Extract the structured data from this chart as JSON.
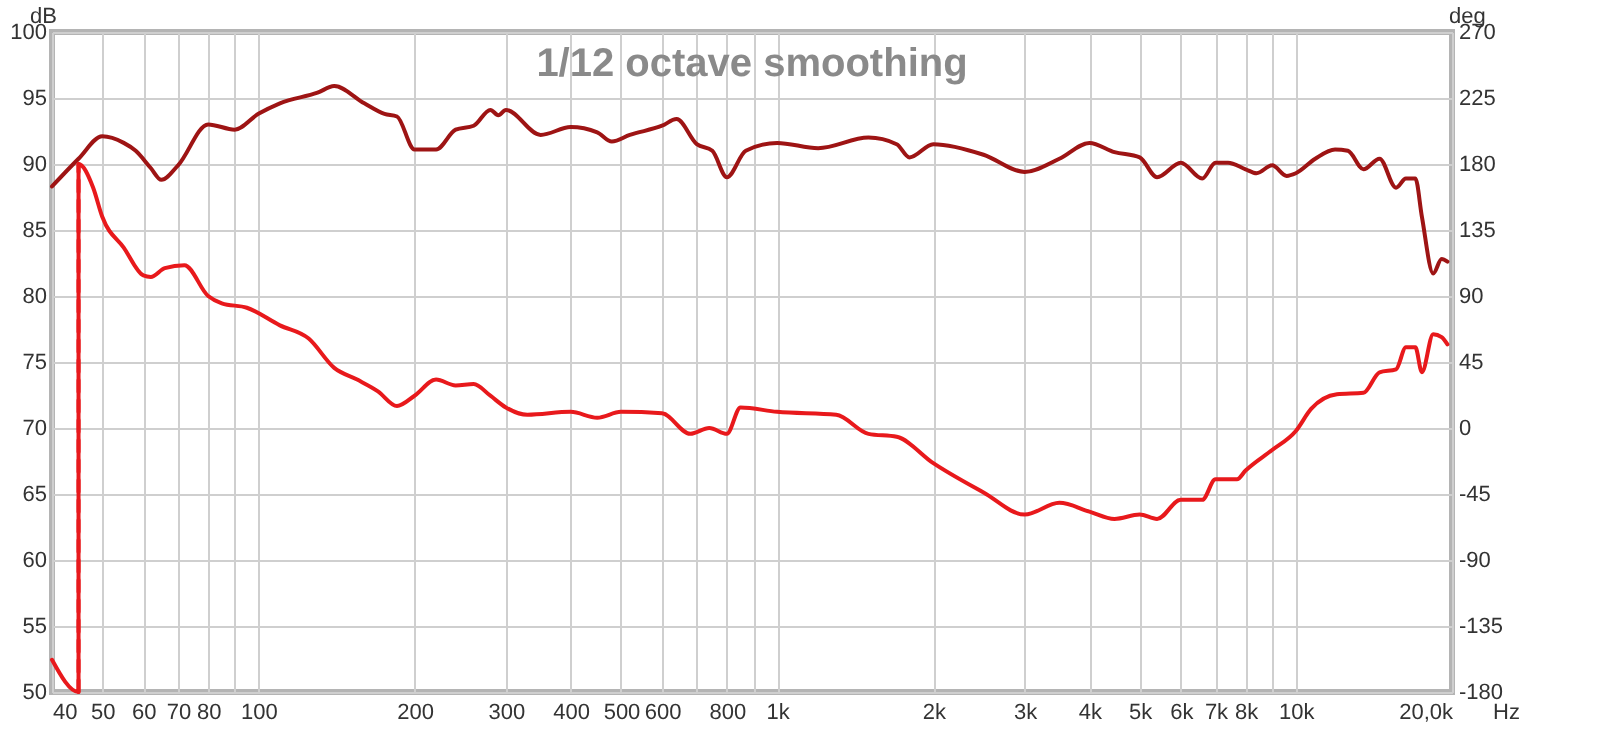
{
  "chart_data": {
    "type": "line",
    "title": "1/12 octave smoothing",
    "xlabel": "Hz",
    "ylabel": "dB",
    "y2label": "deg",
    "log": "x",
    "grid": true,
    "marker": "none",
    "xlim": [
      40,
      20000
    ],
    "xticks": [
      40,
      50,
      60,
      70,
      80,
      {
        "value": 90,
        "label": null
      },
      100,
      200,
      300,
      400,
      500,
      600,
      {
        "value": 700,
        "label": null
      },
      800,
      {
        "value": 900,
        "label": null
      },
      {
        "value": 1000,
        "label": "1k"
      },
      {
        "value": 2000,
        "label": "2k"
      },
      {
        "value": 3000,
        "label": "3k"
      },
      {
        "value": 4000,
        "label": "4k"
      },
      {
        "value": 5000,
        "label": "5k"
      },
      {
        "value": 6000,
        "label": "6k"
      },
      {
        "value": 7000,
        "label": "7k"
      },
      {
        "value": 8000,
        "label": "8k"
      },
      {
        "value": 9000,
        "label": null
      },
      {
        "value": 10000,
        "label": "10k"
      },
      {
        "value": 20000,
        "label": "20,0k"
      }
    ],
    "ylim": [
      50,
      100
    ],
    "yticks": [
      50,
      55,
      60,
      65,
      70,
      75,
      80,
      85,
      90,
      95,
      100
    ],
    "y2lim": [
      -180,
      270
    ],
    "y2ticks": [
      -180,
      -135,
      -90,
      -45,
      0,
      45,
      90,
      135,
      180,
      225,
      270
    ],
    "series": [
      {
        "color": "#9e1414",
        "x": [
          40,
          45,
          50,
          55,
          58,
          62,
          65,
          70,
          80,
          90,
          100,
          110,
          130,
          140,
          160,
          175,
          185,
          200,
          220,
          240,
          260,
          280,
          290,
          300,
          350,
          400,
          450,
          480,
          520,
          600,
          640,
          700,
          750,
          800,
          870,
          1000,
          1200,
          1500,
          1700,
          1800,
          2000,
          2500,
          3000,
          3500,
          4000,
          4470,
          5000,
          5400,
          6000,
          6600,
          7000,
          7400,
          8000,
          8400,
          9000,
          9600,
          10000,
          10900,
          11900,
          12600,
          13500,
          14500,
          15600,
          16300,
          17000,
          17500,
          18400,
          19100,
          19600
        ],
        "values": [
          88.3,
          90.4,
          92.1,
          91.6,
          91.0,
          89.7,
          88.8,
          89.9,
          93.0,
          92.6,
          93.8,
          94.6,
          95.4,
          95.9,
          94.6,
          93.8,
          93.6,
          91.1,
          91.1,
          92.6,
          92.9,
          94.1,
          93.7,
          94.1,
          92.2,
          92.8,
          92.4,
          91.7,
          92.2,
          92.9,
          93.4,
          91.5,
          91.0,
          89.0,
          91.0,
          91.6,
          91.2,
          92.0,
          91.5,
          90.5,
          91.5,
          90.7,
          89.4,
          90.4,
          91.6,
          90.9,
          90.5,
          89.0,
          90.1,
          88.9,
          90.1,
          90.1,
          89.6,
          89.3,
          89.9,
          89.1,
          89.3,
          90.4,
          91.1,
          91.0,
          89.6,
          90.4,
          88.2,
          88.9,
          88.9,
          86.0,
          81.7,
          82.8,
          82.6
        ]
      },
      {
        "color": "#e8191c",
        "axis": "y2",
        "x": [
          40,
          45,
          45,
          48,
          50,
          55,
          60,
          62,
          66,
          72,
          80,
          85,
          95,
          110,
          125,
          140,
          155,
          170,
          185,
          200,
          220,
          240,
          260,
          280,
          300,
          330,
          400,
          450,
          500,
          600,
          680,
          740,
          800,
          850,
          1000,
          1300,
          1500,
          1700,
          2000,
          2500,
          3000,
          3500,
          4000,
          4470,
          5000,
          5400,
          6000,
          6600,
          7000,
          7700,
          8000,
          9000,
          10000,
          10700,
          12000,
          13500,
          14500,
          15600,
          16300,
          17000,
          17500,
          18400,
          19100,
          19600
        ],
        "values": [
          -158,
          -180,
          180,
          164,
          144,
          123,
          104,
          103,
          109,
          111,
          90,
          85,
          82,
          70,
          61,
          41,
          33,
          25,
          15,
          22,
          33,
          29,
          30,
          22,
          14,
          9,
          11,
          7,
          11,
          10,
          -4,
          0,
          -4,
          14,
          11,
          9,
          -4,
          -6,
          -24,
          -44,
          -59,
          -51,
          -57,
          -62,
          -59,
          -62,
          -49,
          -49,
          -35,
          -35,
          -29,
          -15,
          -2,
          13,
          23,
          24,
          38,
          40,
          55,
          55,
          38,
          64,
          62,
          57
        ]
      },
      {
        "color": "#e8191c",
        "axis": "y2",
        "line_style": "dashed",
        "x": [
          45,
          45
        ],
        "values": [
          -180,
          180
        ]
      }
    ]
  }
}
